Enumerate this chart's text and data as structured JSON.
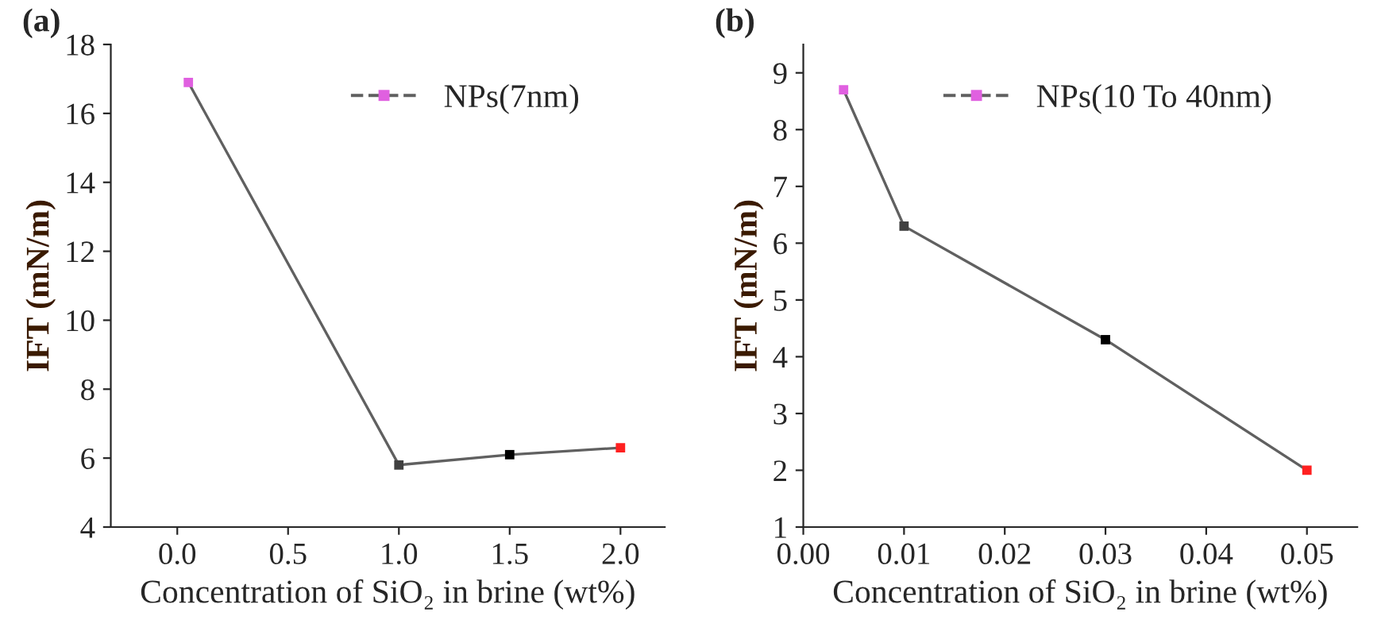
{
  "chart_data": [
    {
      "type": "line",
      "title": "(a)",
      "xlabel": "Concentration of SiO₂ in brine (wt%)",
      "ylabel": "IFT (mN/m)",
      "x": [
        0.05,
        1.0,
        1.5,
        2.0
      ],
      "series": [
        {
          "name": "NPs(7nm)",
          "color": "#606060",
          "colors": [
            "#e060e0",
            "#404040",
            "#000000",
            "#ff2020"
          ],
          "values": [
            16.9,
            5.8,
            6.1,
            6.3
          ]
        }
      ],
      "xlim": [
        -0.3,
        2.2
      ],
      "xticks": [
        {
          "value": 0,
          "label": "0.0"
        },
        0.5,
        {
          "value": 1,
          "label": "1.0"
        },
        1.5,
        {
          "value": 2,
          "label": "2.0"
        }
      ],
      "ylim": [
        4,
        18
      ],
      "yticks": [
        4,
        6,
        8,
        10,
        12,
        14,
        16,
        18
      ],
      "marker": "square",
      "line_style": "solid",
      "legend": "top right",
      "grid": false
    },
    {
      "type": "line",
      "title": "(b)",
      "xlabel": "Concentration of SiO₂ in brine (wt%)",
      "ylabel": "IFT (mN/m)",
      "x": [
        0.004,
        0.01,
        0.03,
        0.05
      ],
      "series": [
        {
          "name": "NPs(10 To 40nm)",
          "color": "#606060",
          "colors": [
            "#e060e0",
            "#404040",
            "#000000",
            "#ff2020"
          ],
          "values": [
            8.7,
            6.3,
            4.3,
            2.0
          ]
        }
      ],
      "xlim": [
        0,
        0.055
      ],
      "xticks": [
        {
          "value": 0,
          "label": "0.00"
        },
        0.01,
        0.02,
        0.03,
        0.04,
        0.05
      ],
      "ylim": [
        1,
        9.5
      ],
      "yticks": [
        1,
        2,
        3,
        4,
        5,
        6,
        7,
        8,
        9
      ],
      "marker": "square",
      "line_style": "solid",
      "legend": "top right",
      "grid": false
    }
  ]
}
